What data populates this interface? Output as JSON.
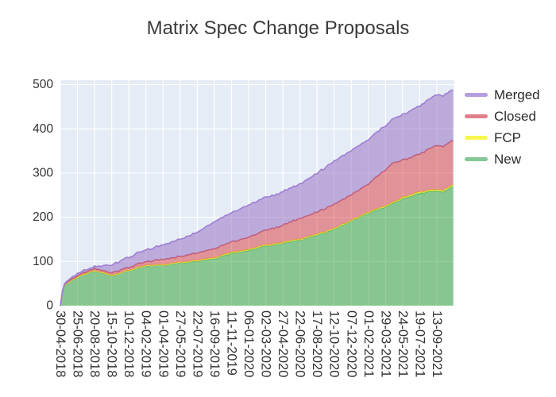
{
  "chart_data": {
    "type": "area",
    "stacked": true,
    "title": "Matrix Spec Change Proposals",
    "xlabel": "",
    "ylabel": "",
    "ylim": [
      0,
      510
    ],
    "grid": true,
    "legend_position": "right",
    "plot_bg_color": "#e5ecf6",
    "grid_color": "#ffffff",
    "tick_label_color": "#333333",
    "title_color": "#3a3a3a",
    "y_ticks": [
      0,
      100,
      200,
      300,
      400,
      500
    ],
    "x_tick_labels": [
      "30-04-2018",
      "25-06-2018",
      "20-08-2018",
      "15-10-2018",
      "10-12-2018",
      "04-02-2019",
      "01-04-2019",
      "27-05-2019",
      "22-07-2019",
      "16-09-2019",
      "11-11-2019",
      "06-01-2020",
      "02-03-2020",
      "27-04-2020",
      "22-06-2020",
      "17-08-2020",
      "12-10-2020",
      "07-12-2020",
      "01-02-2021",
      "29-03-2021",
      "24-05-2021",
      "19-07-2021",
      "13-09-2021"
    ],
    "x_tick_interval_days": 56,
    "x_domain_days": [
      0,
      1289
    ],
    "anchors_days": [
      0,
      10,
      56,
      112,
      168,
      224,
      280,
      336,
      392,
      448,
      504,
      560,
      616,
      672,
      728,
      784,
      840,
      896,
      952,
      1008,
      1064,
      1092,
      1120,
      1176,
      1232,
      1250,
      1285
    ],
    "stack_order_bottom_to_top": [
      "New",
      "FCP",
      "Closed",
      "Merged"
    ],
    "series": [
      {
        "name": "Merged",
        "legend_color": "#b49de0",
        "line_color": "#9d7fd4",
        "fill_color": "rgba(148,103,189,0.5)",
        "values": [
          0,
          2,
          5,
          5,
          18,
          23,
          27,
          33,
          39,
          46,
          61,
          66,
          73,
          74,
          76,
          78,
          88,
          97,
          100,
          100,
          100,
          100,
          103,
          109,
          115,
          115,
          115
        ]
      },
      {
        "name": "Closed",
        "legend_color": "#df8089",
        "line_color": "#cd5f6d",
        "fill_color": "rgba(214,39,40,0.45)",
        "values": [
          0,
          1,
          3,
          4,
          6,
          7,
          9,
          12,
          13,
          17,
          20,
          24,
          27,
          34,
          38,
          47,
          50,
          55,
          58,
          64,
          82,
          89,
          84,
          86,
          100,
          100,
          100
        ]
      },
      {
        "name": "FCP",
        "legend_color": "#f7f74f",
        "line_color": "#e9e93f",
        "fill_color": "rgba(255,255,0,0.5)",
        "values": [
          0,
          1,
          1,
          1,
          1,
          1,
          1,
          1,
          1,
          2,
          2,
          2,
          2,
          2,
          2,
          2,
          2,
          2,
          2,
          2,
          2,
          2,
          3,
          3,
          3,
          3,
          3
        ]
      },
      {
        "name": "New",
        "legend_color": "#82c794",
        "line_color": "#5eb576",
        "fill_color": "rgba(44,160,44,0.5)",
        "values": [
          0,
          45,
          64,
          78,
          68,
          79,
          89,
          92,
          97,
          101,
          107,
          119,
          125,
          135,
          141,
          149,
          159,
          173,
          191,
          209,
          224,
          232,
          242,
          254,
          260,
          256,
          270
        ]
      }
    ]
  }
}
